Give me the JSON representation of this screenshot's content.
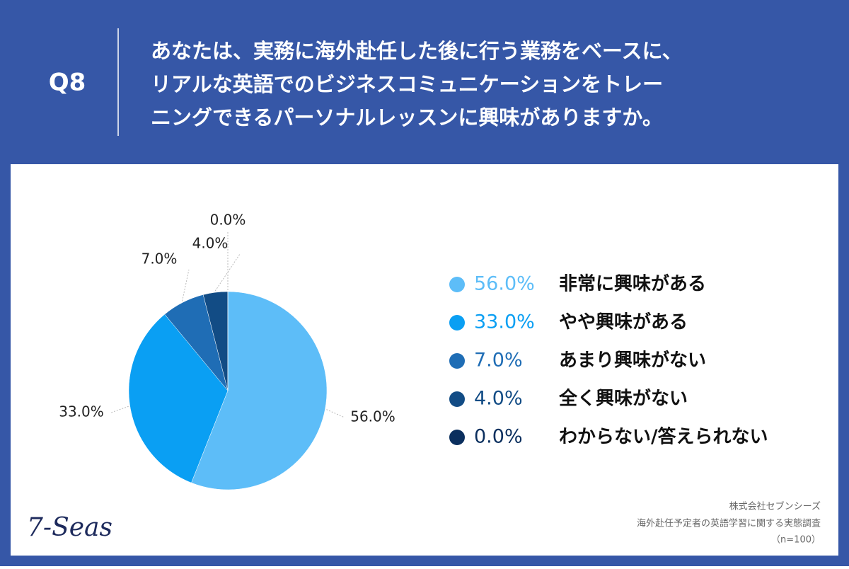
{
  "label": "Q8",
  "chart_data": {
    "type": "pie",
    "title": [
      "あなたは、実務に海外赴任した後に行う業務をベースに、",
      "リアルな英語でのビジネスコミュニケーションをトレー",
      "ニングできるパーソナルレッスンに興味がありますか。"
    ],
    "categories": [
      "非常に興味がある",
      "やや興味がある",
      "あまり興味がない",
      "全く興味がない",
      "わからない/答えられない"
    ],
    "values": [
      56,
      33,
      7,
      4,
      0
    ],
    "value_labels": [
      "56.0%",
      "33.0%",
      "7.0%",
      "4.0%",
      "0.0%"
    ],
    "colors": [
      "#5dbdf8",
      "#0a9ff3",
      "#1f6db5",
      "#124c85",
      "#0b2f5e"
    ]
  },
  "source": [
    "株式会社セブンシーズ",
    "海外赴任予定者の英語学習に関する実態調査",
    "（n=100）"
  ],
  "logo": "7-Seas"
}
